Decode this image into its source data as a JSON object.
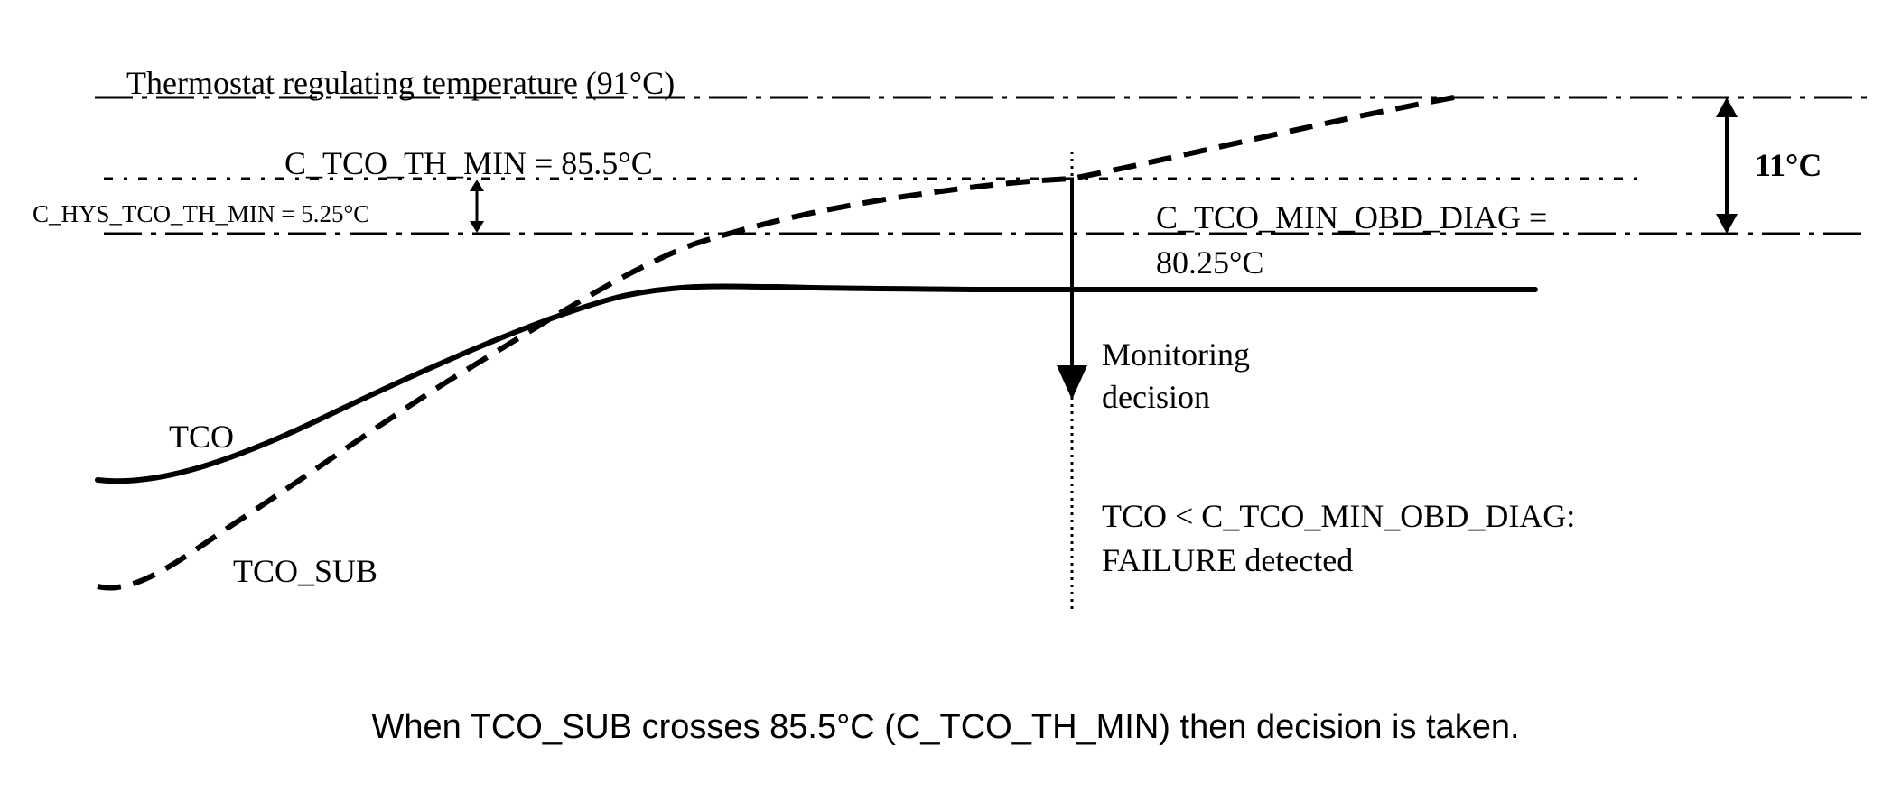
{
  "diagram": {
    "thermostat_label": "Thermostat regulating temperature (91°C)",
    "th_min_label": "C_TCO_TH_MIN = 85.5°C",
    "hys_label": "C_HYS_TCO_TH_MIN = 5.25°C",
    "obd_diag_label_line1": "C_TCO_MIN_OBD_DIAG =",
    "obd_diag_label_line2": "80.25°C",
    "delta_label": "11°C",
    "tco_label": "TCO",
    "tco_sub_label": "TCO_SUB",
    "monitoring_line1": "Monitoring",
    "monitoring_line2": "decision",
    "failure_line1": "TCO < C_TCO_MIN_OBD_DIAG:",
    "failure_line2": "FAILURE detected",
    "caption": "When TCO_SUB crosses 85.5°C (C_TCO_TH_MIN) then decision is taken."
  }
}
